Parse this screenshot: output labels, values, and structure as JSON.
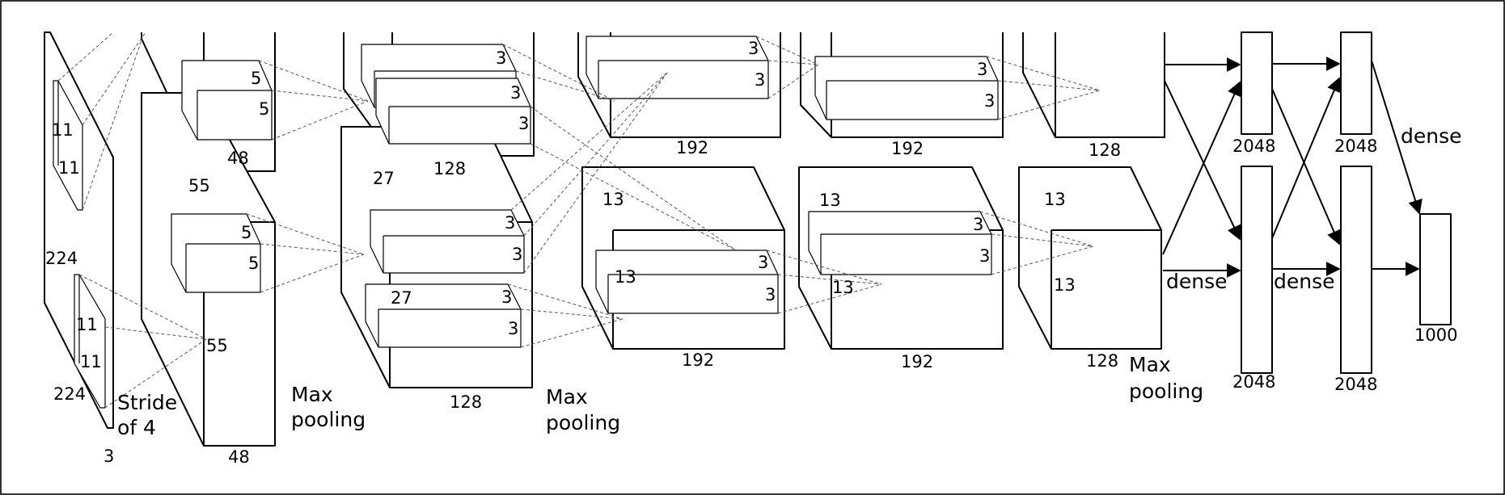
{
  "title": "CNN architecture diagram (two-stream)",
  "input": {
    "height": "224",
    "width": "224",
    "depth": "3",
    "kernel_h": "11",
    "kernel_w": "11",
    "kernel_h2": "11",
    "kernel_w2": "11",
    "stride_line1": "Stride",
    "stride_line2": "of 4"
  },
  "conv1": {
    "size": "55",
    "size2": "55",
    "depth_top": "48",
    "depth_bottom": "48",
    "kernel_a": "5",
    "kernel_b": "5",
    "kernel_c": "5",
    "kernel_d": "5"
  },
  "pool1": {
    "line1": "Max",
    "line2": "pooling"
  },
  "conv2": {
    "size": "27",
    "size2": "27",
    "depth_top": "128",
    "depth_bottom": "128",
    "k1": "3",
    "k2": "3",
    "k3": "3",
    "k4": "3",
    "k5": "3",
    "k6": "3",
    "k7": "3"
  },
  "pool2": {
    "line1": "Max",
    "line2": "pooling"
  },
  "conv3": {
    "size": "13",
    "size2": "13",
    "depth_top": "192",
    "depth_bottom": "192",
    "k1": "3",
    "k2": "3",
    "k3": "3",
    "k4": "3"
  },
  "conv4": {
    "size": "13",
    "size2": "13",
    "depth_top": "192",
    "depth_bottom": "192",
    "k1": "3",
    "k2": "3",
    "k3": "3",
    "k4": "3"
  },
  "conv5": {
    "size": "13",
    "size2": "13",
    "depth_top": "128",
    "depth_bottom": "128"
  },
  "pool3": {
    "line1": "Max",
    "line2": "pooling"
  },
  "fc6": {
    "top": "2048",
    "bottom": "2048"
  },
  "fc7": {
    "top": "2048",
    "bottom": "2048"
  },
  "output": {
    "size": "1000"
  },
  "dense_labels": {
    "a": "dense",
    "b": "dense",
    "c": "dense"
  }
}
